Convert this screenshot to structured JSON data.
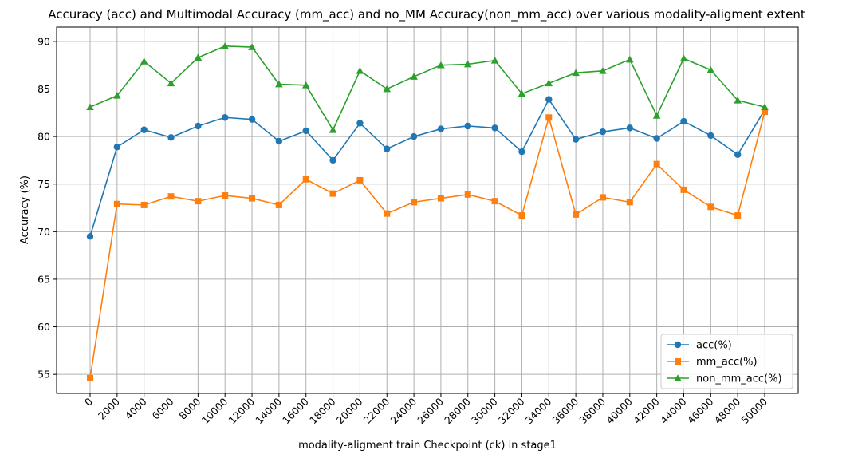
{
  "chart_data": {
    "type": "line",
    "title": "Accuracy (acc) and Multimodal Accuracy (mm_acc) and no_MM Accuracy(non_mm_acc) over various modality-aligment extent",
    "xlabel": "modality-aligment train Checkpoint (ck) in stage1",
    "ylabel": "Accuracy (%)",
    "x": [
      0,
      2000,
      4000,
      6000,
      8000,
      10000,
      12000,
      14000,
      16000,
      18000,
      20000,
      22000,
      24000,
      26000,
      28000,
      30000,
      32000,
      34000,
      36000,
      38000,
      40000,
      42000,
      44000,
      46000,
      48000,
      50000
    ],
    "y_ticks": [
      55,
      60,
      65,
      70,
      75,
      80,
      85,
      90
    ],
    "ylim": [
      53,
      91.5
    ],
    "grid": true,
    "legend_position": "lower-right",
    "series": [
      {
        "name": "acc(%)",
        "color": "#1f77b4",
        "marker": "circle",
        "values": [
          69.5,
          78.9,
          80.7,
          79.9,
          81.1,
          82.0,
          81.8,
          79.5,
          80.6,
          77.5,
          81.4,
          78.7,
          80.0,
          80.8,
          81.1,
          80.9,
          78.4,
          83.9,
          79.7,
          80.5,
          80.9,
          79.8,
          81.6,
          80.1,
          78.1,
          82.8
        ]
      },
      {
        "name": "mm_acc(%)",
        "color": "#ff7f0e",
        "marker": "square",
        "values": [
          54.6,
          72.9,
          72.8,
          73.7,
          73.2,
          73.8,
          73.5,
          72.8,
          75.5,
          74.0,
          75.4,
          71.9,
          73.1,
          73.5,
          73.9,
          73.2,
          71.7,
          82.0,
          71.8,
          73.6,
          73.1,
          77.1,
          74.4,
          72.6,
          71.7,
          82.6
        ]
      },
      {
        "name": "non_mm_acc(%)",
        "color": "#2ca02c",
        "marker": "triangle",
        "values": [
          83.1,
          84.3,
          87.9,
          85.6,
          88.3,
          89.5,
          89.4,
          85.5,
          85.4,
          80.7,
          86.9,
          85.0,
          86.3,
          87.5,
          87.6,
          88.0,
          84.5,
          85.6,
          86.7,
          86.9,
          88.1,
          82.2,
          88.2,
          87.0,
          83.8,
          83.1
        ]
      }
    ]
  }
}
